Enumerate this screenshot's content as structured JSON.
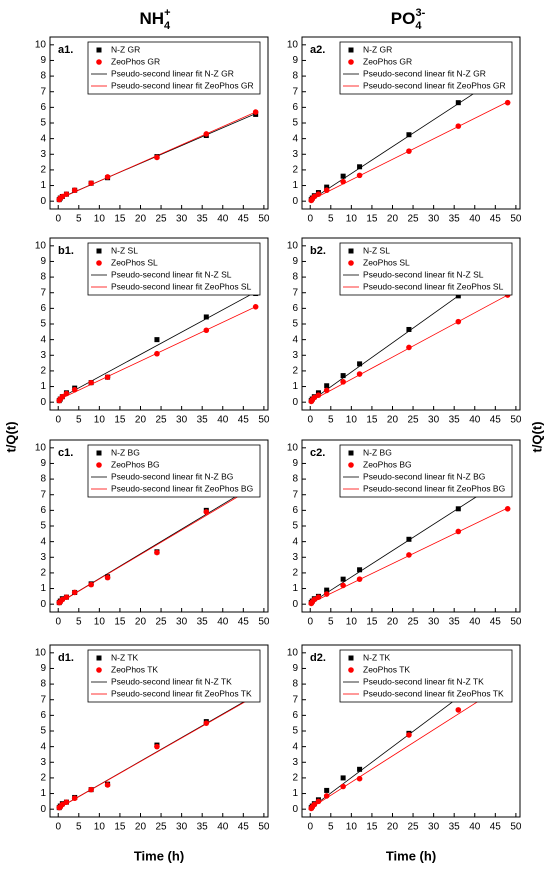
{
  "headers": [
    {
      "base": "NH",
      "sub": "4",
      "sup": "+"
    },
    {
      "base": "PO",
      "sub": "4",
      "sup": "3-"
    }
  ],
  "y_label": "t/Q(t)",
  "x_label": "Time (h)",
  "chart_data": [
    {
      "type": "scatter",
      "label": "a1.",
      "xlim": [
        -2,
        51
      ],
      "ylim": [
        -0.5,
        10.5
      ],
      "xticks": [
        0,
        5,
        10,
        15,
        20,
        25,
        30,
        35,
        40,
        45,
        50
      ],
      "yticks": [
        0,
        1,
        2,
        3,
        4,
        5,
        6,
        7,
        8,
        9,
        10
      ],
      "grid": false,
      "legend": "upper-left",
      "series": [
        {
          "name": "N-Z GR",
          "color": "#000000",
          "marker": "square",
          "x": [
            0.25,
            0.5,
            1,
            2,
            4,
            8,
            12,
            24,
            36,
            48
          ],
          "values": [
            0.1,
            0.2,
            0.3,
            0.45,
            0.7,
            1.15,
            1.5,
            2.85,
            4.2,
            5.55
          ]
        },
        {
          "name": "ZeoPhos GR",
          "color": "#ff0000",
          "marker": "circle",
          "x": [
            0.25,
            0.5,
            1,
            2,
            4,
            8,
            12,
            24,
            36,
            48
          ],
          "values": [
            0.1,
            0.2,
            0.3,
            0.45,
            0.7,
            1.15,
            1.55,
            2.8,
            4.3,
            5.7
          ]
        },
        {
          "name": "Pseudo-second linear fit N-Z GR",
          "color": "#000000",
          "marker": "line",
          "x": [
            0,
            48
          ],
          "values": [
            0.15,
            5.6
          ]
        },
        {
          "name": "Pseudo-second linear fit ZeoPhos GR",
          "color": "#ff0000",
          "marker": "line",
          "x": [
            0,
            48
          ],
          "values": [
            0.12,
            5.7
          ]
        }
      ]
    },
    {
      "type": "scatter",
      "label": "a2.",
      "xlim": [
        -2,
        51
      ],
      "ylim": [
        -0.5,
        10.5
      ],
      "xticks": [
        0,
        5,
        10,
        15,
        20,
        25,
        30,
        35,
        40,
        45,
        50
      ],
      "yticks": [
        0,
        1,
        2,
        3,
        4,
        5,
        6,
        7,
        8,
        9,
        10
      ],
      "grid": false,
      "legend": "upper-left",
      "series": [
        {
          "name": "N-Z  GR",
          "color": "#000000",
          "marker": "square",
          "x": [
            0.25,
            0.5,
            1,
            2,
            4,
            8,
            12,
            24,
            36,
            48
          ],
          "values": [
            0.1,
            0.2,
            0.35,
            0.55,
            0.9,
            1.6,
            2.2,
            4.25,
            6.3,
            8.3
          ]
        },
        {
          "name": "ZeoPhos GR",
          "color": "#ff0000",
          "marker": "circle",
          "x": [
            0.25,
            0.5,
            1,
            2,
            4,
            8,
            12,
            24,
            36,
            48
          ],
          "values": [
            0.05,
            0.15,
            0.3,
            0.45,
            0.7,
            1.25,
            1.65,
            3.2,
            4.8,
            6.3
          ]
        },
        {
          "name": "Pseudo-second linear fit N-Z GR",
          "color": "#000000",
          "marker": "line",
          "x": [
            0,
            48
          ],
          "values": [
            0.05,
            8.3
          ]
        },
        {
          "name": "Pseudo-second linear fit ZeoPhos GR",
          "color": "#ff0000",
          "marker": "line",
          "x": [
            0,
            48
          ],
          "values": [
            0.05,
            6.35
          ]
        }
      ]
    },
    {
      "type": "scatter",
      "label": "b1.",
      "xlim": [
        -2,
        51
      ],
      "ylim": [
        -0.5,
        10.5
      ],
      "xticks": [
        0,
        5,
        10,
        15,
        20,
        25,
        30,
        35,
        40,
        45,
        50
      ],
      "yticks": [
        0,
        1,
        2,
        3,
        4,
        5,
        6,
        7,
        8,
        9,
        10
      ],
      "grid": false,
      "legend": "upper-left",
      "series": [
        {
          "name": "N-Z SL",
          "color": "#000000",
          "marker": "square",
          "x": [
            0.25,
            0.5,
            1,
            2,
            4,
            8,
            12,
            24,
            36,
            48
          ],
          "values": [
            0.1,
            0.2,
            0.35,
            0.6,
            0.9,
            1.25,
            1.6,
            4.0,
            5.45,
            6.95
          ]
        },
        {
          "name": "ZeoPhos SL",
          "color": "#ff0000",
          "marker": "circle",
          "x": [
            0.25,
            0.5,
            1,
            2,
            4,
            8,
            12,
            24,
            36,
            48
          ],
          "values": [
            0.1,
            0.2,
            0.35,
            0.55,
            0.8,
            1.25,
            1.6,
            3.1,
            4.6,
            6.1
          ]
        },
        {
          "name": "Pseudo-second linear fit N-Z SL",
          "color": "#000000",
          "marker": "line",
          "x": [
            0,
            48
          ],
          "values": [
            0.2,
            7.05
          ]
        },
        {
          "name": "Pseudo-second linear fit ZeoPhos SL",
          "color": "#ff0000",
          "marker": "line",
          "x": [
            0,
            48
          ],
          "values": [
            0.15,
            6.1
          ]
        }
      ]
    },
    {
      "type": "scatter",
      "label": "b2.",
      "xlim": [
        -2,
        51
      ],
      "ylim": [
        -0.5,
        10.5
      ],
      "xticks": [
        0,
        5,
        10,
        15,
        20,
        25,
        30,
        35,
        40,
        45,
        50
      ],
      "yticks": [
        0,
        1,
        2,
        3,
        4,
        5,
        6,
        7,
        8,
        9,
        10
      ],
      "grid": false,
      "legend": "upper-left",
      "series": [
        {
          "name": "N-Z SL",
          "color": "#000000",
          "marker": "square",
          "x": [
            0.25,
            0.5,
            1,
            2,
            4,
            8,
            12,
            24,
            36,
            48
          ],
          "values": [
            0.1,
            0.2,
            0.35,
            0.6,
            1.05,
            1.7,
            2.45,
            4.65,
            6.8,
            9.05
          ]
        },
        {
          "name": "ZeoPhos SL",
          "color": "#ff0000",
          "marker": "circle",
          "x": [
            0.25,
            0.5,
            1,
            2,
            4,
            8,
            12,
            24,
            36,
            48
          ],
          "values": [
            0.05,
            0.15,
            0.3,
            0.45,
            0.75,
            1.3,
            1.8,
            3.5,
            5.15,
            6.85
          ]
        },
        {
          "name": "Pseudo-second linear fit N-Z SL",
          "color": "#000000",
          "marker": "line",
          "x": [
            0,
            48
          ],
          "values": [
            0.05,
            9.05
          ]
        },
        {
          "name": "Pseudo-second linear fit ZeoPhos SL",
          "color": "#ff0000",
          "marker": "line",
          "x": [
            0,
            48
          ],
          "values": [
            0.05,
            6.85
          ]
        }
      ]
    },
    {
      "type": "scatter",
      "label": "c1.",
      "xlim": [
        -2,
        51
      ],
      "ylim": [
        -0.5,
        10.5
      ],
      "xticks": [
        0,
        5,
        10,
        15,
        20,
        25,
        30,
        35,
        40,
        45,
        50
      ],
      "yticks": [
        0,
        1,
        2,
        3,
        4,
        5,
        6,
        7,
        8,
        9,
        10
      ],
      "grid": false,
      "legend": "upper-left",
      "series": [
        {
          "name": "N-Z BG",
          "color": "#000000",
          "marker": "square",
          "x": [
            0.25,
            0.5,
            1,
            2,
            4,
            8,
            12,
            24,
            36,
            48
          ],
          "values": [
            0.1,
            0.2,
            0.35,
            0.45,
            0.75,
            1.3,
            1.75,
            3.35,
            6.0,
            7.55
          ]
        },
        {
          "name": "ZeoPhos BG",
          "color": "#ff0000",
          "marker": "circle",
          "x": [
            0.25,
            0.5,
            1,
            2,
            4,
            8,
            12,
            24,
            36,
            48
          ],
          "values": [
            0.1,
            0.15,
            0.3,
            0.45,
            0.75,
            1.25,
            1.7,
            3.3,
            5.9,
            7.6
          ]
        },
        {
          "name": "Pseudo-second linear fit N-Z BG",
          "color": "#000000",
          "marker": "line",
          "x": [
            0,
            48
          ],
          "values": [
            0.05,
            7.65
          ]
        },
        {
          "name": "Pseudo-second linear fit ZeoPhos BG",
          "color": "#ff0000",
          "marker": "line",
          "x": [
            0,
            48
          ],
          "values": [
            0.05,
            7.55
          ]
        }
      ]
    },
    {
      "type": "scatter",
      "label": "c2.",
      "xlim": [
        -2,
        51
      ],
      "ylim": [
        -0.5,
        10.5
      ],
      "xticks": [
        0,
        5,
        10,
        15,
        20,
        25,
        30,
        35,
        40,
        45,
        50
      ],
      "yticks": [
        0,
        1,
        2,
        3,
        4,
        5,
        6,
        7,
        8,
        9,
        10
      ],
      "grid": false,
      "legend": "upper-left",
      "series": [
        {
          "name": "N-Z BG",
          "color": "#000000",
          "marker": "square",
          "x": [
            0.25,
            0.5,
            1,
            2,
            4,
            8,
            12,
            24,
            36,
            48
          ],
          "values": [
            0.1,
            0.2,
            0.35,
            0.5,
            0.9,
            1.6,
            2.2,
            4.15,
            6.1,
            8.1
          ]
        },
        {
          "name": "ZeoPhos BG",
          "color": "#ff0000",
          "marker": "circle",
          "x": [
            0.25,
            0.5,
            1,
            2,
            4,
            8,
            12,
            24,
            36,
            48
          ],
          "values": [
            0.05,
            0.15,
            0.3,
            0.45,
            0.65,
            1.2,
            1.6,
            3.15,
            4.65,
            6.1
          ]
        },
        {
          "name": "Pseudo-second linear fit N-Z BG",
          "color": "#000000",
          "marker": "line",
          "x": [
            0,
            48
          ],
          "values": [
            0.05,
            8.15
          ]
        },
        {
          "name": "Pseudo-second linear fit ZeoPhos BG",
          "color": "#ff0000",
          "marker": "line",
          "x": [
            0,
            48
          ],
          "values": [
            0.05,
            6.15
          ]
        }
      ]
    },
    {
      "type": "scatter",
      "label": "d1.",
      "xlim": [
        -2,
        51
      ],
      "ylim": [
        -0.5,
        10.5
      ],
      "xticks": [
        0,
        5,
        10,
        15,
        20,
        25,
        30,
        35,
        40,
        45,
        50
      ],
      "yticks": [
        0,
        1,
        2,
        3,
        4,
        5,
        6,
        7,
        8,
        9,
        10
      ],
      "grid": false,
      "legend": "upper-left",
      "series": [
        {
          "name": "N-Z TK",
          "color": "#000000",
          "marker": "square",
          "x": [
            0.25,
            0.5,
            1,
            2,
            4,
            8,
            12,
            24,
            36,
            48
          ],
          "values": [
            0.1,
            0.2,
            0.35,
            0.45,
            0.75,
            1.25,
            1.6,
            4.1,
            5.6,
            7.05
          ]
        },
        {
          "name": "ZeoPhos TK",
          "color": "#ff0000",
          "marker": "circle",
          "x": [
            0.25,
            0.5,
            1,
            2,
            4,
            8,
            12,
            24,
            36,
            48
          ],
          "values": [
            0.1,
            0.15,
            0.3,
            0.45,
            0.7,
            1.25,
            1.55,
            4.0,
            5.5,
            7.15
          ]
        },
        {
          "name": "Pseudo-second linear fit N-Z TK",
          "color": "#000000",
          "marker": "line",
          "x": [
            0,
            48
          ],
          "values": [
            0.05,
            7.3
          ]
        },
        {
          "name": "Pseudo-second linear fit ZeoPhos TK",
          "color": "#ff0000",
          "marker": "line",
          "x": [
            0,
            48
          ],
          "values": [
            0.05,
            7.25
          ]
        }
      ]
    },
    {
      "type": "scatter",
      "label": "d2.",
      "xlim": [
        -2,
        51
      ],
      "ylim": [
        -0.5,
        10.5
      ],
      "xticks": [
        0,
        5,
        10,
        15,
        20,
        25,
        30,
        35,
        40,
        45,
        50
      ],
      "yticks": [
        0,
        1,
        2,
        3,
        4,
        5,
        6,
        7,
        8,
        9,
        10
      ],
      "grid": false,
      "legend": "upper-left",
      "series": [
        {
          "name": "N-Z TK",
          "color": "#000000",
          "marker": "square",
          "x": [
            0.25,
            0.5,
            1,
            2,
            4,
            8,
            12,
            24,
            36,
            48
          ],
          "values": [
            0.1,
            0.2,
            0.35,
            0.6,
            1.2,
            2.0,
            2.55,
            4.85,
            7.1,
            9.35
          ]
        },
        {
          "name": "ZeoPhos TK",
          "color": "#ff0000",
          "marker": "circle",
          "x": [
            0.25,
            0.5,
            1,
            2,
            4,
            8,
            12,
            24,
            36,
            48
          ],
          "values": [
            0.05,
            0.15,
            0.3,
            0.5,
            0.85,
            1.45,
            1.95,
            4.75,
            6.35,
            8.05
          ]
        },
        {
          "name": "Pseudo-second linear fit N-Z TK",
          "color": "#000000",
          "marker": "line",
          "x": [
            0,
            48
          ],
          "values": [
            0.05,
            9.5
          ]
        },
        {
          "name": "Pseudo-second linear fit ZeoPhos TK",
          "color": "#ff0000",
          "marker": "line",
          "x": [
            0,
            48
          ],
          "values": [
            0.05,
            8.1
          ]
        }
      ]
    }
  ]
}
